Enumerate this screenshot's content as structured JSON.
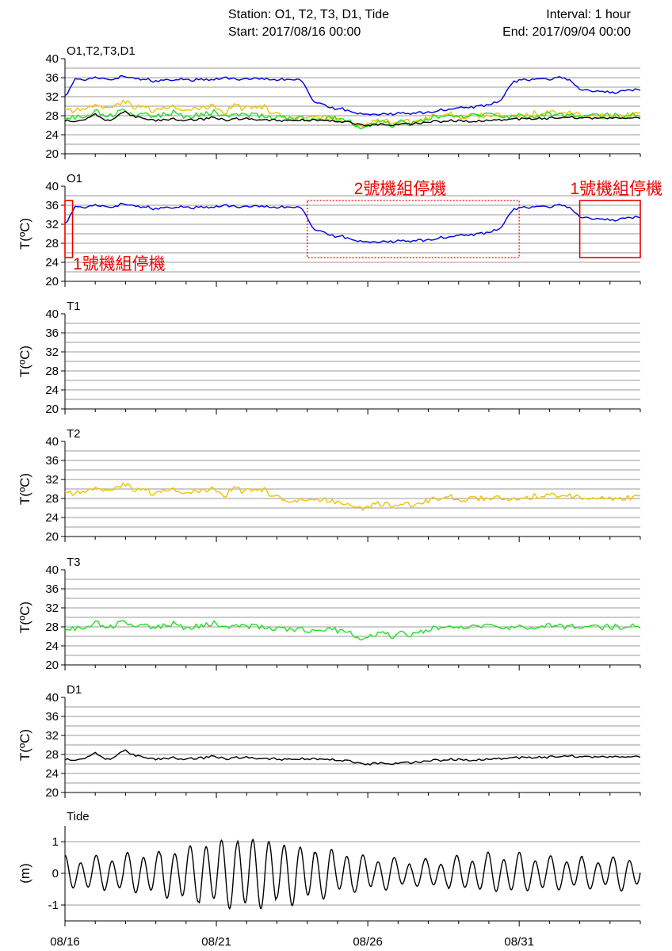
{
  "header": {
    "station": "Station: O1, T2, T3, D1, Tide",
    "start": "Start: 2017/08/16 00:00",
    "interval": "Interval: 1 hour",
    "end": "End: 2017/09/04 00:00"
  },
  "colors": {
    "O1": "#0000dd",
    "T2": "#f2c200",
    "T3": "#22e022",
    "D1": "#000000",
    "Tide": "#000000",
    "annotation": "#ee0000"
  },
  "chart_data": {
    "type": "line",
    "x_axis": {
      "start": "2017/08/16 00:00",
      "end": "2017/09/04 00:00",
      "interval": "1 hour",
      "tick_labels": [
        "08/16",
        "08/21",
        "08/26",
        "08/31"
      ]
    },
    "panels": [
      {
        "title": "O1,T2,T3,D1",
        "ylabel": "",
        "ylim": [
          20,
          40
        ],
        "yticks": [
          "20",
          "24",
          "28",
          "32",
          "36",
          "40"
        ],
        "series": [
          {
            "key": "O1",
            "values": [
              32,
              35.6,
              35.6,
              36.2,
              35.8,
              35.7,
              36.4,
              35.7,
              35.8,
              35.3,
              35.6,
              35.7,
              35.7,
              35.5,
              35.6,
              35.8,
              35.9,
              35.8,
              35.6,
              35.9,
              35.8,
              35.5,
              35.6,
              35.7,
              35.4,
              31.2,
              30.2,
              29.6,
              29.4,
              28.9,
              28.4,
              28.2,
              28.5,
              28.3,
              28.7,
              28.4,
              28.6,
              28.9,
              29.2,
              29.6,
              29.7,
              29.8,
              30.1,
              30.4,
              31.2,
              34.8,
              35.6,
              35.6,
              35.7,
              35.8,
              36,
              35.3,
              33.2,
              33.4,
              33,
              32.9,
              33,
              33.3,
              33.5
            ]
          },
          {
            "key": "T2",
            "values": [
              29,
              29.2,
              29.4,
              30.3,
              29.5,
              29.8,
              31.3,
              29.7,
              30,
              28.8,
              29.5,
              30.2,
              28.6,
              29.2,
              29.6,
              30.4,
              28.4,
              30.1,
              29.5,
              29.9,
              30,
              28.4,
              28.1,
              27.6,
              27.8,
              27.5,
              27.7,
              27.5,
              27.2,
              26.8,
              25.9,
              26.6,
              26.9,
              26.4,
              26.9,
              26.7,
              27.2,
              27.8,
              27.9,
              28.4,
              27.6,
              27.9,
              28,
              28.2,
              27.8,
              28,
              28.2,
              28.4,
              28.5,
              28.6,
              28.5,
              28.4,
              28.2,
              28.1,
              27.9,
              28,
              28,
              28.1,
              28.2
            ]
          },
          {
            "key": "T3",
            "values": [
              27.6,
              27.7,
              27.9,
              29,
              28,
              28.3,
              29.4,
              28.2,
              28.6,
              27.9,
              28.3,
              28.7,
              27.8,
              28.1,
              28.4,
              28.9,
              27.7,
              28.3,
              28.1,
              28,
              27.9,
              27.6,
              27.4,
              27.2,
              27.5,
              27.3,
              27.6,
              27.4,
              27.1,
              26.5,
              25.5,
              26.3,
              26.8,
              26.1,
              26.6,
              26.3,
              26.9,
              27.6,
              27.7,
              28.3,
              27.6,
              27.9,
              28,
              28.1,
              27.7,
              27.9,
              28,
              28.1,
              28.1,
              28.2,
              28.1,
              28.1,
              28,
              28,
              27.9,
              28,
              28.1,
              28.1,
              28.2
            ]
          },
          {
            "key": "D1",
            "values": [
              27,
              26.9,
              27.2,
              28.6,
              27,
              27.3,
              28.9,
              27.8,
              27.4,
              26.9,
              27.2,
              27.4,
              26.8,
              27.2,
              27.3,
              27.6,
              27.1,
              27.3,
              27.4,
              27.3,
              27.2,
              27.1,
              27,
              26.9,
              27.1,
              27,
              27.1,
              26.9,
              26.8,
              26.4,
              25.9,
              26.1,
              26.3,
              26.1,
              26.2,
              26.3,
              26.5,
              26.7,
              26.8,
              27,
              26.8,
              26.9,
              27,
              27.1,
              27.2,
              27.2,
              27.3,
              27.4,
              27.4,
              27.5,
              27.6,
              27.6,
              27.6,
              27.5,
              27.5,
              27.6,
              27.6,
              27.5,
              27.5
            ]
          }
        ]
      },
      {
        "title": "O1",
        "ylabel": "T(ºC)",
        "ylim": [
          20,
          40
        ],
        "yticks": [
          "20",
          "24",
          "28",
          "32",
          "36",
          "40"
        ],
        "series": [
          {
            "key": "O1",
            "values": [
              32,
              35.6,
              35.6,
              36.2,
              35.8,
              35.7,
              36.4,
              35.7,
              35.8,
              35.3,
              35.6,
              35.7,
              35.7,
              35.5,
              35.6,
              35.8,
              35.9,
              35.8,
              35.6,
              35.9,
              35.8,
              35.5,
              35.6,
              35.7,
              35.4,
              31.2,
              30.2,
              29.6,
              29.4,
              28.9,
              28.4,
              28.2,
              28.5,
              28.3,
              28.7,
              28.4,
              28.6,
              28.9,
              29.2,
              29.6,
              29.7,
              29.8,
              30.1,
              30.4,
              31.2,
              34.8,
              35.6,
              35.6,
              35.7,
              35.8,
              36,
              35.3,
              33.2,
              33.4,
              33,
              32.9,
              33,
              33.3,
              33.5
            ]
          }
        ]
      },
      {
        "title": "T1",
        "ylabel": "T(ºC)",
        "ylim": [
          20,
          40
        ],
        "yticks": [
          "20",
          "24",
          "28",
          "32",
          "36",
          "40"
        ],
        "series": []
      },
      {
        "title": "T2",
        "ylabel": "T(ºC)",
        "ylim": [
          20,
          40
        ],
        "yticks": [
          "20",
          "24",
          "28",
          "32",
          "36",
          "40"
        ],
        "series": [
          {
            "key": "T2",
            "values": [
              29,
              29.2,
              29.4,
              30.3,
              29.5,
              29.8,
              31.3,
              29.7,
              30,
              28.8,
              29.5,
              30.2,
              28.6,
              29.2,
              29.6,
              30.4,
              28.4,
              30.1,
              29.5,
              29.9,
              30,
              28.4,
              28.1,
              27.6,
              27.8,
              27.5,
              27.7,
              27.5,
              27.2,
              26.8,
              25.9,
              26.6,
              26.9,
              26.4,
              26.9,
              26.7,
              27.2,
              27.8,
              27.9,
              28.4,
              27.6,
              27.9,
              28,
              28.2,
              27.8,
              28,
              28.2,
              28.4,
              28.5,
              28.6,
              28.5,
              28.4,
              28.2,
              28.1,
              27.9,
              28,
              28,
              28.1,
              28.2
            ]
          }
        ]
      },
      {
        "title": "T3",
        "ylabel": "T(ºC)",
        "ylim": [
          20,
          40
        ],
        "yticks": [
          "20",
          "24",
          "28",
          "32",
          "36",
          "40"
        ],
        "series": [
          {
            "key": "T3",
            "values": [
              27.6,
              27.7,
              27.9,
              29,
              28,
              28.3,
              29.4,
              28.2,
              28.6,
              27.9,
              28.3,
              28.7,
              27.8,
              28.1,
              28.4,
              28.9,
              27.7,
              28.3,
              28.1,
              28,
              27.9,
              27.6,
              27.4,
              27.2,
              27.5,
              27.3,
              27.6,
              27.4,
              27.1,
              26.5,
              25.5,
              26.3,
              26.8,
              26.1,
              26.6,
              26.3,
              26.9,
              27.6,
              27.7,
              28.3,
              27.6,
              27.9,
              28,
              28.1,
              27.7,
              27.9,
              28,
              28.1,
              28.1,
              28.2,
              28.1,
              28.1,
              28,
              28,
              27.9,
              28,
              28.1,
              28.1,
              28.2
            ]
          }
        ]
      },
      {
        "title": "D1",
        "ylabel": "T(ºC)",
        "ylim": [
          20,
          40
        ],
        "yticks": [
          "20",
          "24",
          "28",
          "32",
          "36",
          "40"
        ],
        "series": [
          {
            "key": "D1",
            "values": [
              27,
              26.9,
              27.2,
              28.6,
              27,
              27.3,
              28.9,
              27.8,
              27.4,
              26.9,
              27.2,
              27.4,
              26.8,
              27.2,
              27.3,
              27.6,
              27.1,
              27.3,
              27.4,
              27.3,
              27.2,
              27.1,
              27,
              26.9,
              27.1,
              27,
              27.1,
              26.9,
              26.8,
              26.4,
              25.9,
              26.1,
              26.3,
              26.1,
              26.2,
              26.3,
              26.5,
              26.7,
              26.8,
              27,
              26.8,
              26.9,
              27,
              27.1,
              27.2,
              27.2,
              27.3,
              27.4,
              27.4,
              27.5,
              27.6,
              27.6,
              27.6,
              27.5,
              27.5,
              27.6,
              27.6,
              27.5,
              27.5
            ]
          }
        ]
      },
      {
        "title": "Tide",
        "ylabel": "(m)",
        "ylim": [
          -1.5,
          1.5
        ],
        "yticks": [
          "-1",
          "0",
          "1"
        ],
        "series": [
          {
            "key": "Tide",
            "tidal_amplitude_m": [
              0.45,
              0.45,
              0.5,
              0.55,
              0.6,
              0.7,
              0.8,
              0.9,
              1.0,
              1.05,
              1.0,
              0.9,
              0.8,
              0.7,
              0.6,
              0.5,
              0.45,
              0.4,
              0.35,
              0.4,
              0.45,
              0.5,
              0.55,
              0.55,
              0.5,
              0.45,
              0.45,
              0.4,
              0.45,
              0.45
            ]
          }
        ]
      }
    ],
    "annotations": [
      {
        "panel": 1,
        "label": "1號機組停機",
        "x_range": [
          "2017/08/16 00:00",
          "2017/08/16 06:00"
        ],
        "y_range": [
          25,
          37
        ],
        "style": "solid"
      },
      {
        "panel": 1,
        "label": "2號機組停機",
        "x_range": [
          "2017/08/24 00:00",
          "2017/08/31 00:00"
        ],
        "y_range": [
          25,
          37
        ],
        "style": "dotted"
      },
      {
        "panel": 1,
        "label": "1號機組停機",
        "x_range": [
          "2017/09/02 00:00",
          "2017/09/04 00:00"
        ],
        "y_range": [
          25,
          37
        ],
        "style": "solid"
      }
    ]
  }
}
